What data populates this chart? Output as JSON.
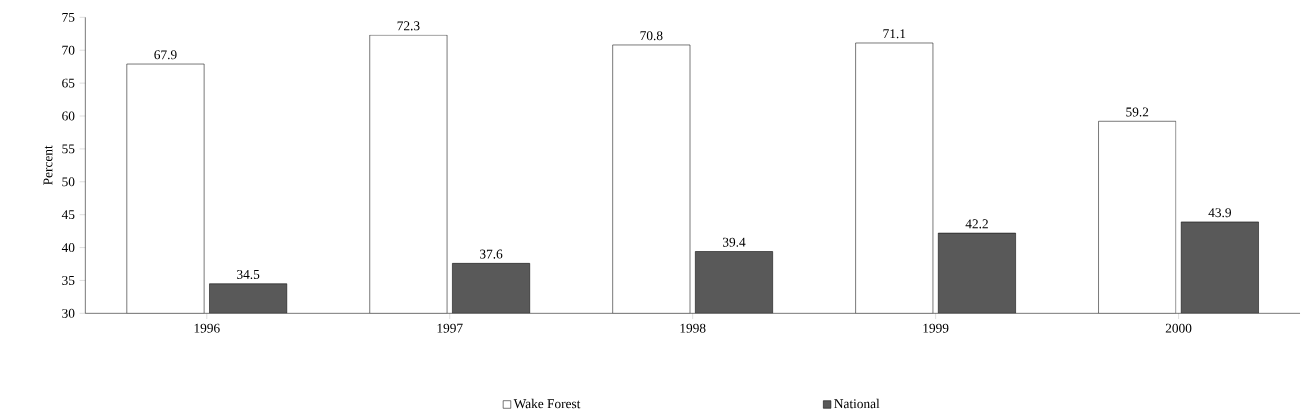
{
  "chart_data": {
    "type": "bar",
    "ylabel": "Percent",
    "categories": [
      "1996",
      "1997",
      "1998",
      "1999",
      "2000"
    ],
    "series": [
      {
        "name": "Wake Forest",
        "color": "#ffffff",
        "values": [
          67.9,
          72.3,
          70.8,
          71.1,
          59.2
        ]
      },
      {
        "name": "National",
        "color": "#595959",
        "values": [
          34.5,
          37.6,
          39.4,
          42.2,
          43.9
        ]
      }
    ],
    "ylim": [
      30,
      75
    ],
    "yticks": [
      30,
      35,
      40,
      45,
      50,
      55,
      60,
      65,
      70,
      75
    ],
    "data_labels": true,
    "legend": "bottom",
    "grid": false
  }
}
